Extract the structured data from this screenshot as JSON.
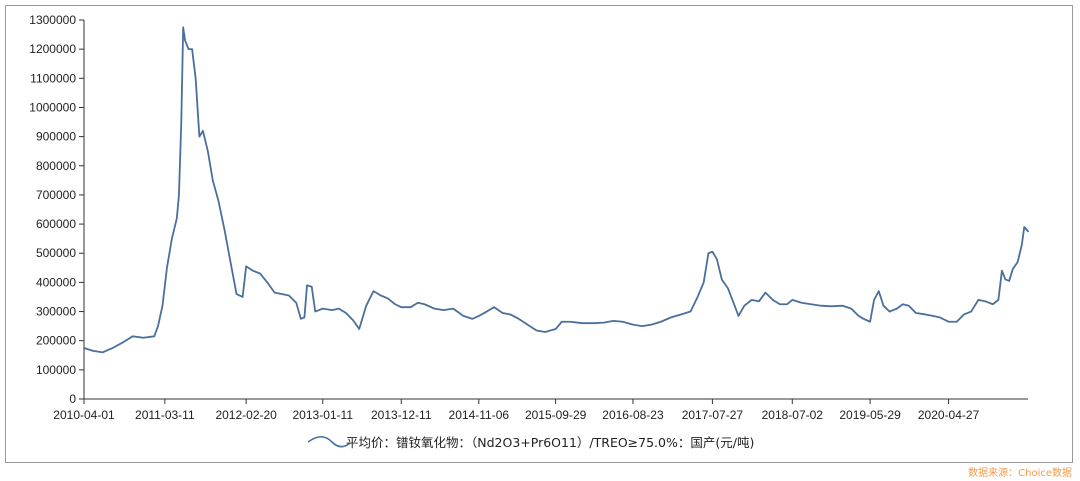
{
  "chart_data": {
    "type": "line",
    "ylim": [
      0,
      1300000
    ],
    "y_ticks": [
      0,
      100000,
      200000,
      300000,
      400000,
      500000,
      600000,
      700000,
      800000,
      900000,
      1000000,
      1100000,
      1200000,
      1300000
    ],
    "y_tick_labels": [
      "0",
      "100000",
      "200000",
      "300000",
      "400000",
      "500000",
      "600000",
      "700000",
      "800000",
      "900000",
      "1000000",
      "1100000",
      "1200000",
      "1300000"
    ],
    "x_ticks": [
      "2010-04-01",
      "2011-03-11",
      "2012-02-20",
      "2013-01-11",
      "2013-12-11",
      "2014-11-06",
      "2015-09-29",
      "2016-08-23",
      "2017-07-27",
      "2018-07-02",
      "2019-05-29",
      "2020-04-27"
    ],
    "xlim": [
      "2010-04-01",
      "2021-03-31"
    ],
    "grid": false,
    "legend_position": "bottom-center",
    "series": [
      {
        "name": "平均价：镨钕氧化物：（Nd2O3+Pr6O11）/TREO≥75.0%：国产(元/吨)",
        "color": "#4a6f9c",
        "points": [
          [
            "2010-04-01",
            175000
          ],
          [
            "2010-05-10",
            165000
          ],
          [
            "2010-06-20",
            160000
          ],
          [
            "2010-08-01",
            175000
          ],
          [
            "2010-09-15",
            195000
          ],
          [
            "2010-10-25",
            215000
          ],
          [
            "2010-12-10",
            210000
          ],
          [
            "2011-01-25",
            215000
          ],
          [
            "2011-02-10",
            250000
          ],
          [
            "2011-03-01",
            320000
          ],
          [
            "2011-03-20",
            450000
          ],
          [
            "2011-04-10",
            550000
          ],
          [
            "2011-05-01",
            620000
          ],
          [
            "2011-05-10",
            700000
          ],
          [
            "2011-05-20",
            950000
          ],
          [
            "2011-05-28",
            1275000
          ],
          [
            "2011-06-05",
            1230000
          ],
          [
            "2011-06-20",
            1200000
          ],
          [
            "2011-07-05",
            1200000
          ],
          [
            "2011-07-20",
            1100000
          ],
          [
            "2011-08-05",
            900000
          ],
          [
            "2011-08-20",
            920000
          ],
          [
            "2011-09-10",
            850000
          ],
          [
            "2011-10-01",
            750000
          ],
          [
            "2011-10-25",
            680000
          ],
          [
            "2011-11-20",
            580000
          ],
          [
            "2011-12-20",
            450000
          ],
          [
            "2012-01-10",
            360000
          ],
          [
            "2012-02-05",
            350000
          ],
          [
            "2012-02-20",
            455000
          ],
          [
            "2012-03-20",
            440000
          ],
          [
            "2012-04-20",
            430000
          ],
          [
            "2012-05-20",
            400000
          ],
          [
            "2012-06-20",
            365000
          ],
          [
            "2012-07-20",
            360000
          ],
          [
            "2012-08-20",
            355000
          ],
          [
            "2012-09-20",
            330000
          ],
          [
            "2012-10-10",
            275000
          ],
          [
            "2012-10-25",
            280000
          ],
          [
            "2012-11-05",
            390000
          ],
          [
            "2012-11-25",
            385000
          ],
          [
            "2012-12-10",
            300000
          ],
          [
            "2013-01-11",
            310000
          ],
          [
            "2013-02-20",
            305000
          ],
          [
            "2013-03-20",
            310000
          ],
          [
            "2013-04-20",
            295000
          ],
          [
            "2013-05-20",
            270000
          ],
          [
            "2013-06-15",
            240000
          ],
          [
            "2013-07-15",
            320000
          ],
          [
            "2013-08-15",
            370000
          ],
          [
            "2013-09-15",
            355000
          ],
          [
            "2013-10-15",
            345000
          ],
          [
            "2013-11-15",
            325000
          ],
          [
            "2013-12-11",
            315000
          ],
          [
            "2014-01-20",
            315000
          ],
          [
            "2014-02-20",
            330000
          ],
          [
            "2014-03-20",
            325000
          ],
          [
            "2014-05-01",
            310000
          ],
          [
            "2014-06-10",
            305000
          ],
          [
            "2014-07-20",
            310000
          ],
          [
            "2014-09-01",
            285000
          ],
          [
            "2014-10-10",
            275000
          ],
          [
            "2014-11-06",
            285000
          ],
          [
            "2014-12-10",
            300000
          ],
          [
            "2015-01-10",
            315000
          ],
          [
            "2015-02-15",
            295000
          ],
          [
            "2015-03-20",
            290000
          ],
          [
            "2015-04-25",
            275000
          ],
          [
            "2015-06-01",
            255000
          ],
          [
            "2015-07-10",
            235000
          ],
          [
            "2015-08-15",
            230000
          ],
          [
            "2015-09-29",
            240000
          ],
          [
            "2015-10-25",
            265000
          ],
          [
            "2015-12-01",
            265000
          ],
          [
            "2016-01-20",
            260000
          ],
          [
            "2016-03-10",
            260000
          ],
          [
            "2016-04-20",
            262000
          ],
          [
            "2016-06-01",
            268000
          ],
          [
            "2016-07-10",
            265000
          ],
          [
            "2016-08-23",
            255000
          ],
          [
            "2016-10-01",
            250000
          ],
          [
            "2016-11-10",
            255000
          ],
          [
            "2016-12-20",
            265000
          ],
          [
            "2017-02-01",
            280000
          ],
          [
            "2017-03-15",
            290000
          ],
          [
            "2017-04-25",
            300000
          ],
          [
            "2017-05-25",
            350000
          ],
          [
            "2017-06-20",
            400000
          ],
          [
            "2017-07-10",
            500000
          ],
          [
            "2017-07-27",
            505000
          ],
          [
            "2017-08-15",
            480000
          ],
          [
            "2017-09-05",
            410000
          ],
          [
            "2017-10-01",
            380000
          ],
          [
            "2017-10-25",
            330000
          ],
          [
            "2017-11-15",
            285000
          ],
          [
            "2017-12-10",
            320000
          ],
          [
            "2018-01-10",
            340000
          ],
          [
            "2018-02-10",
            335000
          ],
          [
            "2018-03-10",
            365000
          ],
          [
            "2018-04-10",
            340000
          ],
          [
            "2018-05-10",
            325000
          ],
          [
            "2018-06-10",
            325000
          ],
          [
            "2018-07-02",
            340000
          ],
          [
            "2018-08-10",
            330000
          ],
          [
            "2018-09-20",
            325000
          ],
          [
            "2018-11-01",
            320000
          ],
          [
            "2018-12-15",
            318000
          ],
          [
            "2019-02-01",
            320000
          ],
          [
            "2019-03-10",
            310000
          ],
          [
            "2019-04-10",
            285000
          ],
          [
            "2019-05-01",
            275000
          ],
          [
            "2019-05-29",
            265000
          ],
          [
            "2019-06-15",
            340000
          ],
          [
            "2019-07-05",
            370000
          ],
          [
            "2019-07-25",
            320000
          ],
          [
            "2019-08-20",
            300000
          ],
          [
            "2019-09-20",
            310000
          ],
          [
            "2019-10-15",
            325000
          ],
          [
            "2019-11-10",
            320000
          ],
          [
            "2019-12-10",
            295000
          ],
          [
            "2020-01-20",
            290000
          ],
          [
            "2020-02-20",
            285000
          ],
          [
            "2020-03-20",
            280000
          ],
          [
            "2020-04-27",
            265000
          ],
          [
            "2020-06-01",
            265000
          ],
          [
            "2020-07-01",
            290000
          ],
          [
            "2020-08-01",
            300000
          ],
          [
            "2020-09-01",
            340000
          ],
          [
            "2020-10-01",
            335000
          ],
          [
            "2020-11-01",
            325000
          ],
          [
            "2020-11-25",
            340000
          ],
          [
            "2020-12-10",
            440000
          ],
          [
            "2020-12-25",
            410000
          ],
          [
            "2021-01-10",
            405000
          ],
          [
            "2021-01-25",
            445000
          ],
          [
            "2021-02-15",
            470000
          ],
          [
            "2021-03-05",
            530000
          ],
          [
            "2021-03-15",
            590000
          ],
          [
            "2021-03-31",
            575000
          ]
        ]
      }
    ]
  },
  "source_note": "数据来源：Choice数据"
}
